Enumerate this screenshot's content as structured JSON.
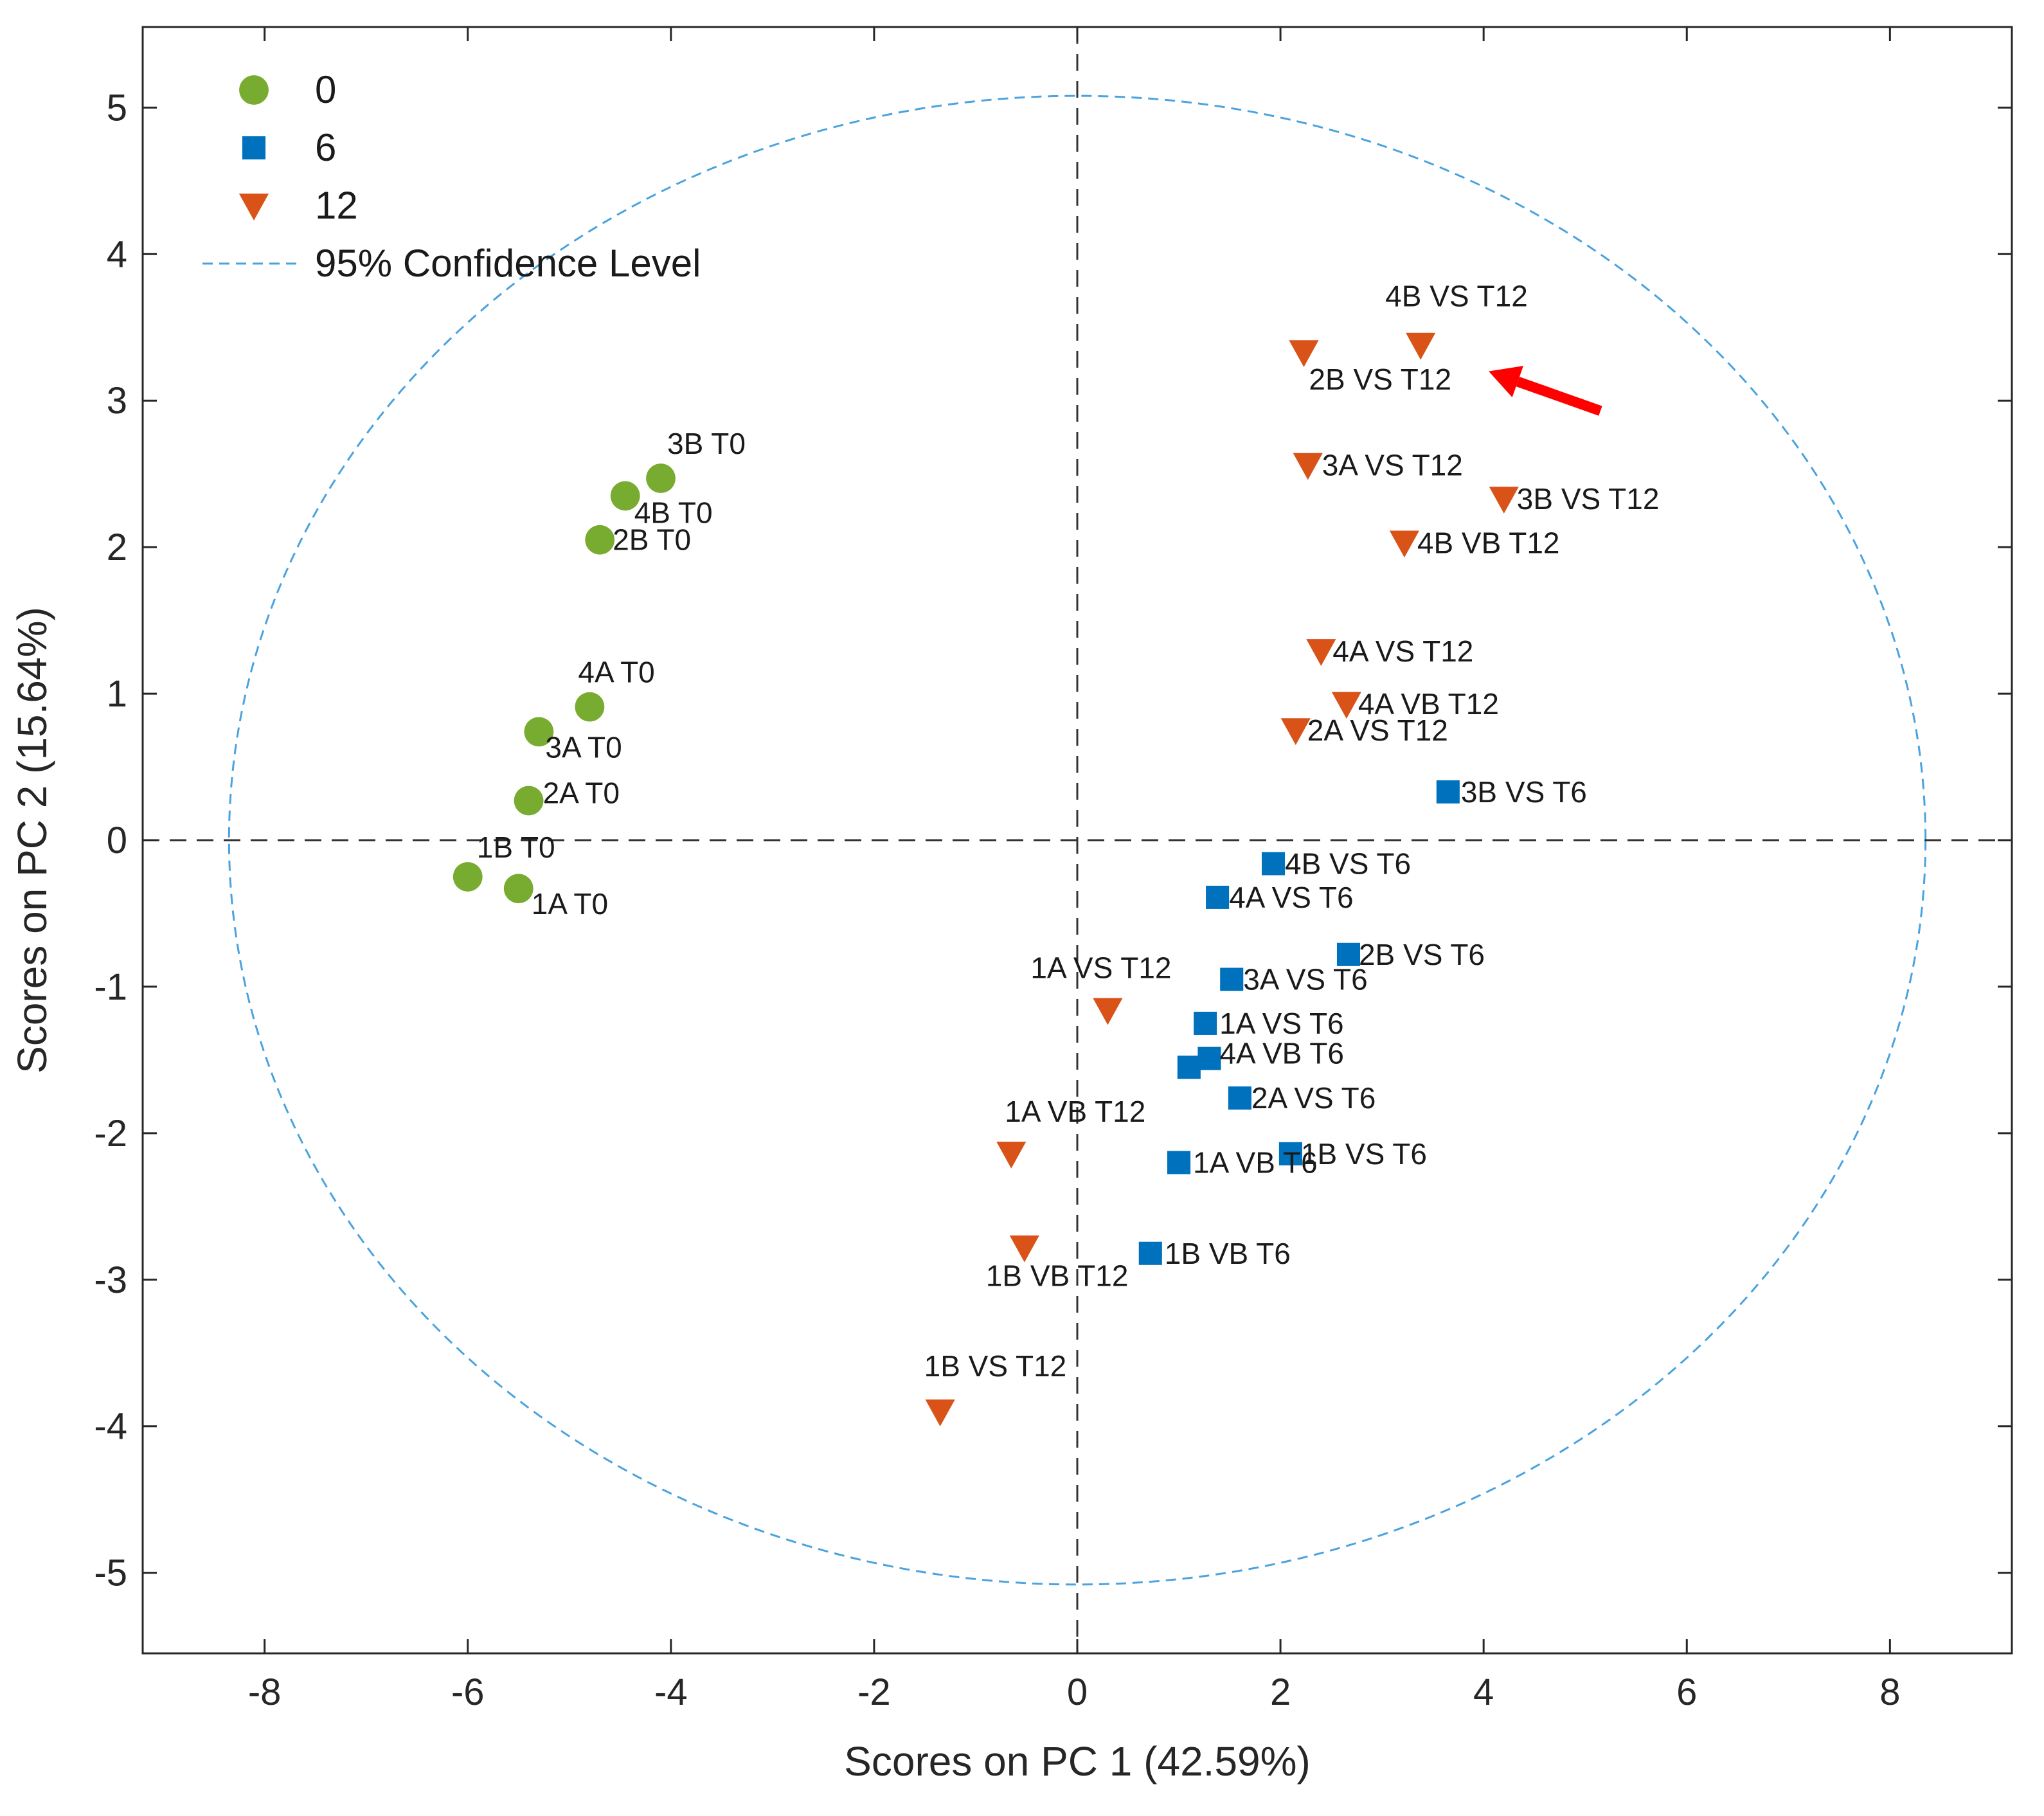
{
  "chart_data": {
    "type": "scatter",
    "xlabel": "Scores on PC 1 (42.59%)",
    "ylabel": "Scores on PC 2 (15.64%)",
    "xlim": [
      -9.2,
      9.2
    ],
    "ylim": [
      -5.55,
      5.55
    ],
    "xticks": [
      -8,
      -6,
      -4,
      -2,
      0,
      2,
      4,
      6,
      8
    ],
    "yticks": [
      -5,
      -4,
      -3,
      -2,
      -1,
      0,
      1,
      2,
      3,
      4,
      5
    ],
    "grid": false,
    "legend_position": "top-left",
    "confidence_ellipse": {
      "label": "95% Confidence Level",
      "rx": 8.35,
      "ry": 5.08,
      "color": "#4aa3df"
    },
    "reference_lines": {
      "x": 0,
      "y": 0
    },
    "series": [
      {
        "name": "0",
        "marker": "circle",
        "color": "#77ac30",
        "points": [
          {
            "label": "3B T0",
            "x": -4.1,
            "y": 2.47
          },
          {
            "label": "4B T0",
            "x": -4.45,
            "y": 2.35
          },
          {
            "label": "2B T0",
            "x": -4.7,
            "y": 2.05
          },
          {
            "label": "4A T0",
            "x": -4.8,
            "y": 0.91
          },
          {
            "label": "3A T0",
            "x": -5.3,
            "y": 0.74
          },
          {
            "label": "2A T0",
            "x": -5.4,
            "y": 0.27
          },
          {
            "label": "1B T0",
            "x": -6.0,
            "y": -0.25
          },
          {
            "label": "1A T0",
            "x": -5.5,
            "y": -0.33
          }
        ]
      },
      {
        "name": "6",
        "marker": "square",
        "color": "#0072bd",
        "points": [
          {
            "label": "3B VS T6",
            "x": 3.65,
            "y": 0.33
          },
          {
            "label": "4B VS T6",
            "x": 1.93,
            "y": -0.16
          },
          {
            "label": "4A VS T6",
            "x": 1.38,
            "y": -0.39
          },
          {
            "label": "2B VS T6",
            "x": 2.67,
            "y": -0.78
          },
          {
            "label": "3A VS T6",
            "x": 1.52,
            "y": -0.95
          },
          {
            "label": "1A VS T6",
            "x": 1.26,
            "y": -1.25
          },
          {
            "label": "4A VB T6",
            "x": 1.3,
            "y": -1.49
          },
          {
            "label": "",
            "x": 1.1,
            "y": -1.55
          },
          {
            "label": "2A VS T6",
            "x": 1.6,
            "y": -1.76
          },
          {
            "label": "1B VS T6",
            "x": 2.1,
            "y": -2.14
          },
          {
            "label": "1A VB T6",
            "x": 1.0,
            "y": -2.2
          },
          {
            "label": "1B VB T6",
            "x": 0.72,
            "y": -2.82
          }
        ]
      },
      {
        "name": "12",
        "marker": "triangle-down",
        "color": "#d95319",
        "points": [
          {
            "label": "4B VS T12",
            "x": 3.38,
            "y": 3.38
          },
          {
            "label": "2B VS T12",
            "x": 2.23,
            "y": 3.33
          },
          {
            "label": "3A VS T12",
            "x": 2.27,
            "y": 2.56
          },
          {
            "label": "3B VS T12",
            "x": 4.2,
            "y": 2.33
          },
          {
            "label": "4B VB T12",
            "x": 3.22,
            "y": 2.03
          },
          {
            "label": "4A VS T12",
            "x": 2.4,
            "y": 1.29
          },
          {
            "label": "4A VB T12",
            "x": 2.65,
            "y": 0.93
          },
          {
            "label": "2A VS T12",
            "x": 2.15,
            "y": 0.75
          },
          {
            "label": "1A VS T12",
            "x": 0.3,
            "y": -1.16
          },
          {
            "label": "1A VB T12",
            "x": -0.65,
            "y": -2.14
          },
          {
            "label": "1B VB T12",
            "x": -0.52,
            "y": -2.78
          },
          {
            "label": "1B VS T12",
            "x": -1.35,
            "y": -3.9
          }
        ]
      }
    ],
    "annotations": [
      {
        "type": "arrow",
        "color": "#ff0000",
        "from": [
          5.15,
          2.93
        ],
        "to": [
          4.05,
          3.2
        ]
      }
    ]
  }
}
